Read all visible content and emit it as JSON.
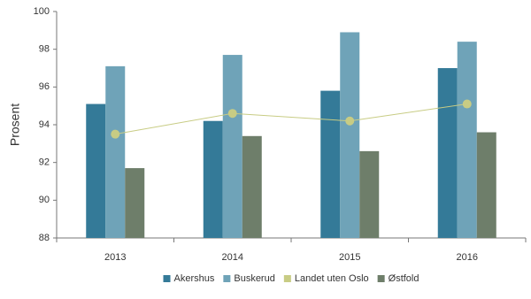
{
  "chart_data": {
    "type": "bar",
    "y_label": "Prosent",
    "categories": [
      "2013",
      "2014",
      "2015",
      "2016"
    ],
    "series": [
      {
        "name": "Akershus",
        "color": "#347a98",
        "values": [
          95.1,
          94.2,
          95.8,
          97.0
        ]
      },
      {
        "name": "Buskerud",
        "color": "#6fa3b8",
        "values": [
          97.1,
          97.7,
          98.9,
          98.4
        ]
      },
      {
        "name": "Landet uten Oslo",
        "color": "#c8cc84",
        "type": "line",
        "values": [
          93.5,
          94.6,
          94.2,
          95.1
        ]
      },
      {
        "name": "Østfold",
        "color": "#6e7e6a",
        "values": [
          91.7,
          93.4,
          92.6,
          93.6
        ]
      }
    ],
    "ylim": [
      88,
      100
    ],
    "yticks": [
      88,
      90,
      92,
      94,
      96,
      98,
      100
    ],
    "grid": false,
    "legend": "bottom"
  }
}
